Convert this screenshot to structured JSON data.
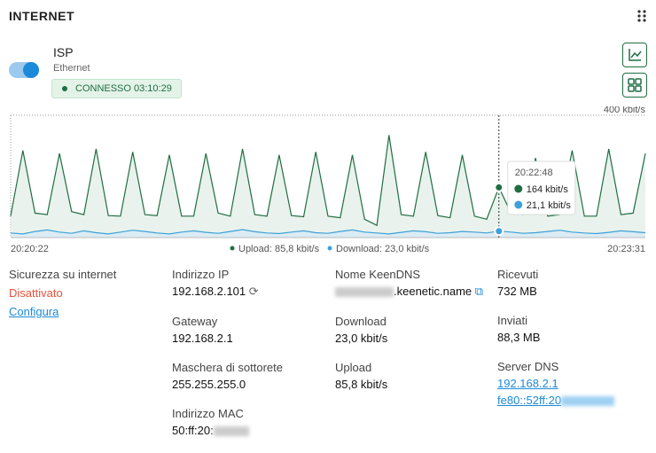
{
  "header": {
    "title": "INTERNET"
  },
  "connection": {
    "name": "ISP",
    "type": "Ethernet",
    "status": "CONNESSO 03:10:29"
  },
  "chart_data": {
    "type": "area",
    "yticks": [
      {
        "value": 400,
        "label": "400 kbit/s"
      }
    ],
    "ylim": [
      0,
      400
    ],
    "x_start": "20:20:22",
    "x_end": "20:23:31",
    "series": [
      {
        "name": "Upload: 85,8 kbit/s",
        "color": "#1f6e43",
        "values": [
          70,
          285,
          80,
          75,
          275,
          85,
          75,
          290,
          72,
          70,
          280,
          75,
          72,
          270,
          70,
          70,
          275,
          80,
          70,
          290,
          75,
          70,
          270,
          72,
          68,
          280,
          70,
          65,
          270,
          60,
          40,
          335,
          75,
          70,
          280,
          72,
          65,
          270,
          70,
          60,
          164,
          80,
          75,
          260,
          70,
          75,
          285,
          70,
          70,
          290,
          75,
          80,
          275
        ]
      },
      {
        "name": "Download: 23,0 kbit/s",
        "color": "#3ea0d8",
        "values": [
          15,
          12,
          20,
          25,
          18,
          14,
          22,
          16,
          12,
          18,
          24,
          20,
          15,
          12,
          18,
          22,
          17,
          14,
          20,
          26,
          19,
          15,
          13,
          18,
          22,
          16,
          14,
          20,
          25,
          18,
          15,
          12,
          17,
          22,
          19,
          14,
          16,
          20,
          18,
          15,
          21.1,
          18,
          14,
          16,
          20,
          24,
          18,
          15,
          13,
          17,
          22,
          19,
          16
        ]
      }
    ],
    "tooltip": {
      "time": "20:22:48",
      "upload": "164 kbit/s",
      "download": "21,1 kbit/s"
    }
  },
  "info": {
    "security": {
      "label": "Sicurezza su internet",
      "status": "Disattivato",
      "link": "Configura"
    },
    "ip": {
      "label": "Indirizzo IP",
      "value": "192.168.2.101"
    },
    "gateway": {
      "label": "Gateway",
      "value": "192.168.2.1"
    },
    "mask": {
      "label": "Maschera di sottorete",
      "value": "255.255.255.0"
    },
    "mac": {
      "label": "Indirizzo MAC",
      "value": "50:ff:20:"
    },
    "keendns": {
      "label": "Nome KeenDNS",
      "value": ".keenetic.name"
    },
    "download": {
      "label": "Download",
      "value": "23,0 kbit/s"
    },
    "upload": {
      "label": "Upload",
      "value": "85,8 kbit/s"
    },
    "received": {
      "label": "Ricevuti",
      "value": "732 MB"
    },
    "sent": {
      "label": "Inviati",
      "value": "88,3 MB"
    },
    "dns": {
      "label": "Server DNS",
      "values": [
        "192.168.2.1",
        "fe80::52ff:20"
      ]
    }
  }
}
